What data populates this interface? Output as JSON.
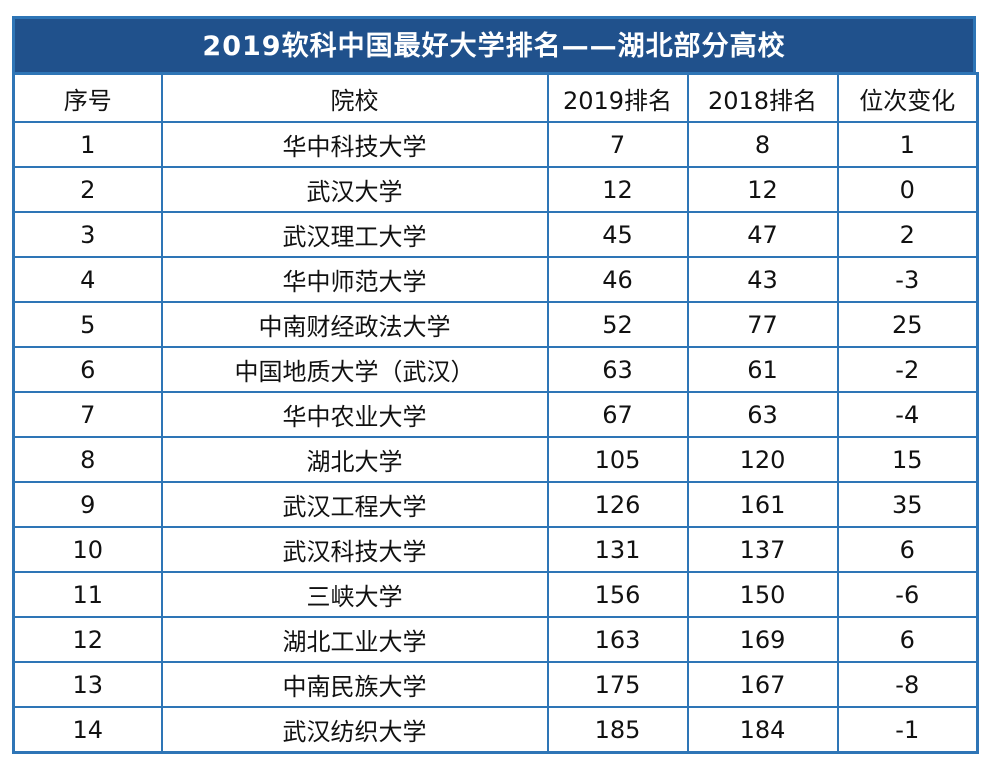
{
  "title": "2019软科中国最好大学排名——湖北部分高校",
  "colors": {
    "title_bg": "#20518C",
    "title_text": "#FFFFFF",
    "border": "#2E75B6",
    "cell_bg": "#FFFFFF",
    "cell_text": "#111111"
  },
  "chart_data": {
    "type": "table",
    "title": "2019软科中国最好大学排名——湖北部分高校",
    "columns": [
      "序号",
      "院校",
      "2019排名",
      "2018排名",
      "位次变化"
    ],
    "rows": [
      [
        1,
        "华中科技大学",
        7,
        8,
        1
      ],
      [
        2,
        "武汉大学",
        12,
        12,
        0
      ],
      [
        3,
        "武汉理工大学",
        45,
        47,
        2
      ],
      [
        4,
        "华中师范大学",
        46,
        43,
        -3
      ],
      [
        5,
        "中南财经政法大学",
        52,
        77,
        25
      ],
      [
        6,
        "中国地质大学（武汉）",
        63,
        61,
        -2
      ],
      [
        7,
        "华中农业大学",
        67,
        63,
        -4
      ],
      [
        8,
        "湖北大学",
        105,
        120,
        15
      ],
      [
        9,
        "武汉工程大学",
        126,
        161,
        35
      ],
      [
        10,
        "武汉科技大学",
        131,
        137,
        6
      ],
      [
        11,
        "三峡大学",
        156,
        150,
        -6
      ],
      [
        12,
        "湖北工业大学",
        163,
        169,
        6
      ],
      [
        13,
        "中南民族大学",
        175,
        167,
        -8
      ],
      [
        14,
        "武汉纺织大学",
        185,
        184,
        -1
      ]
    ]
  }
}
